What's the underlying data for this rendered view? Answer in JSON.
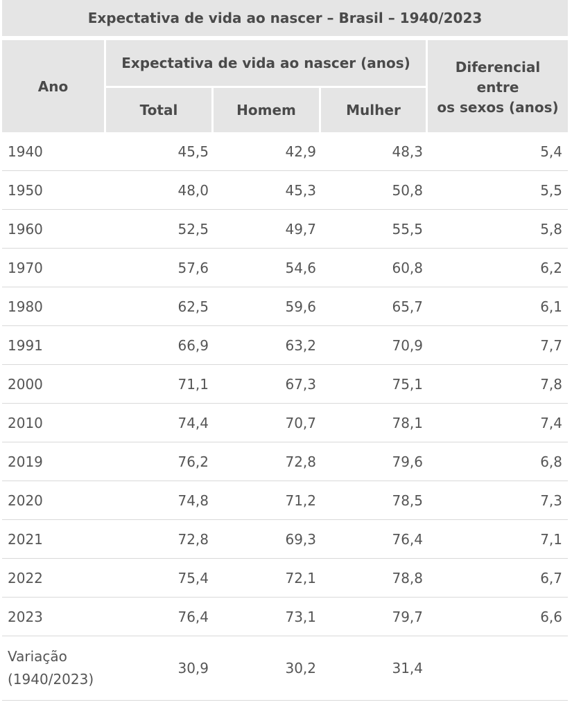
{
  "chart_data": {
    "type": "table",
    "title": "Expectativa de vida ao nascer – Brasil – 1940/2023",
    "headers": {
      "ano": "Ano",
      "group": "Expectativa de vida ao nascer (anos)",
      "total": "Total",
      "homem": "Homem",
      "mulher": "Mulher",
      "diferencial_line1": "Diferencial",
      "diferencial_line2": "entre",
      "diferencial_line3": "os sexos (anos)"
    },
    "rows": [
      {
        "ano": "1940",
        "total": "45,5",
        "homem": "42,9",
        "mulher": "48,3",
        "diferencial": "5,4"
      },
      {
        "ano": "1950",
        "total": "48,0",
        "homem": "45,3",
        "mulher": "50,8",
        "diferencial": "5,5"
      },
      {
        "ano": "1960",
        "total": "52,5",
        "homem": "49,7",
        "mulher": "55,5",
        "diferencial": "5,8"
      },
      {
        "ano": "1970",
        "total": "57,6",
        "homem": "54,6",
        "mulher": "60,8",
        "diferencial": "6,2"
      },
      {
        "ano": "1980",
        "total": "62,5",
        "homem": "59,6",
        "mulher": "65,7",
        "diferencial": "6,1"
      },
      {
        "ano": "1991",
        "total": "66,9",
        "homem": "63,2",
        "mulher": "70,9",
        "diferencial": "7,7"
      },
      {
        "ano": "2000",
        "total": "71,1",
        "homem": "67,3",
        "mulher": "75,1",
        "diferencial": "7,8"
      },
      {
        "ano": "2010",
        "total": "74,4",
        "homem": "70,7",
        "mulher": "78,1",
        "diferencial": "7,4"
      },
      {
        "ano": "2019",
        "total": "76,2",
        "homem": "72,8",
        "mulher": "79,6",
        "diferencial": "6,8"
      },
      {
        "ano": "2020",
        "total": "74,8",
        "homem": "71,2",
        "mulher": "78,5",
        "diferencial": "7,3"
      },
      {
        "ano": "2021",
        "total": "72,8",
        "homem": "69,3",
        "mulher": "76,4",
        "diferencial": "7,1"
      },
      {
        "ano": "2022",
        "total": "75,4",
        "homem": "72,1",
        "mulher": "78,8",
        "diferencial": "6,7"
      },
      {
        "ano": "2023",
        "total": "76,4",
        "homem": "73,1",
        "mulher": "79,7",
        "diferencial": "6,6"
      }
    ],
    "variacao": {
      "label_line1": "Variação",
      "label_line2": "(1940/2023)",
      "total": "30,9",
      "homem": "30,2",
      "mulher": "31,4"
    }
  }
}
